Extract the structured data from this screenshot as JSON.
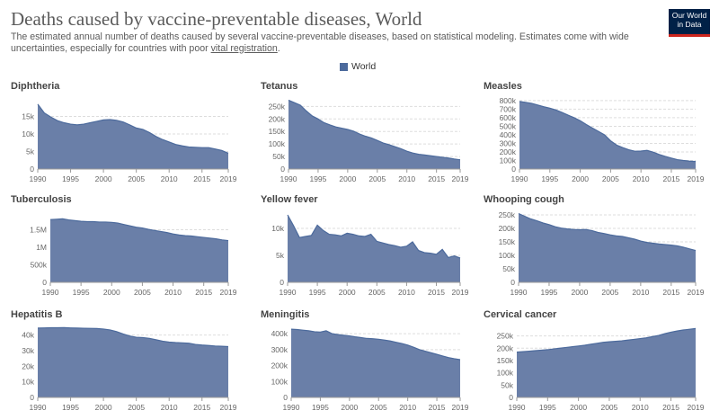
{
  "header": {
    "title": "Deaths caused by vaccine-preventable diseases, World",
    "subtitle": "The estimated annual number of deaths caused by several vaccine-preventable diseases, based on statistical modeling. Estimates come with wide uncertainties, especially for countries with poor",
    "subtitle_link": "vital registration",
    "subtitle_end": ".",
    "logo_line1": "Our World",
    "logo_line2": "in Data"
  },
  "legend": {
    "label": "World"
  },
  "colors": {
    "area": "#6a7fa8",
    "line": "#4c6a9c",
    "grid": "#dddddd",
    "text": "#5b5b5b"
  },
  "chart_data": [
    {
      "type": "area",
      "title": "Diphtheria",
      "x": [
        1990,
        1991,
        1992,
        1993,
        1994,
        1995,
        1996,
        1997,
        1998,
        1999,
        2000,
        2001,
        2002,
        2003,
        2004,
        2005,
        2006,
        2007,
        2008,
        2009,
        2010,
        2011,
        2012,
        2013,
        2014,
        2015,
        2016,
        2017,
        2018,
        2019
      ],
      "values": [
        18500,
        16000,
        14800,
        13800,
        13200,
        12800,
        12600,
        12800,
        13200,
        13600,
        14000,
        14100,
        13900,
        13400,
        12600,
        11700,
        11300,
        10400,
        9300,
        8400,
        7700,
        7000,
        6600,
        6300,
        6200,
        6100,
        6100,
        5700,
        5300,
        4500
      ],
      "xticks": [
        "1990",
        "1995",
        "2000",
        "2005",
        "2010",
        "2015",
        "2019"
      ],
      "yticks": [
        "0",
        "5k",
        "10k",
        "15k"
      ],
      "ylim": [
        0,
        20000
      ],
      "ytick_values": [
        0,
        5000,
        10000,
        15000
      ]
    },
    {
      "type": "area",
      "title": "Tetanus",
      "x": [
        1990,
        1991,
        1992,
        1993,
        1994,
        1995,
        1996,
        1997,
        1998,
        1999,
        2000,
        2001,
        2002,
        2003,
        2004,
        2005,
        2006,
        2007,
        2008,
        2009,
        2010,
        2011,
        2012,
        2013,
        2014,
        2015,
        2016,
        2017,
        2018,
        2019
      ],
      "values": [
        275000,
        265000,
        255000,
        232000,
        212000,
        200000,
        185000,
        176000,
        168000,
        163000,
        158000,
        151000,
        140000,
        131000,
        124000,
        114000,
        104000,
        97000,
        89000,
        81000,
        71000,
        64000,
        59000,
        56000,
        53000,
        50000,
        47000,
        44000,
        40000,
        37000
      ],
      "xticks": [
        "1990",
        "1995",
        "2000",
        "2005",
        "2010",
        "2015",
        "2019"
      ],
      "yticks": [
        "0",
        "50k",
        "100k",
        "150k",
        "200k",
        "250k"
      ],
      "ylim": [
        0,
        280000
      ],
      "ytick_values": [
        0,
        50000,
        100000,
        150000,
        200000,
        250000
      ]
    },
    {
      "type": "area",
      "title": "Measles",
      "x": [
        1990,
        1991,
        1992,
        1993,
        1994,
        1995,
        1996,
        1997,
        1998,
        1999,
        2000,
        2001,
        2002,
        2003,
        2004,
        2005,
        2006,
        2007,
        2008,
        2009,
        2010,
        2011,
        2012,
        2013,
        2014,
        2015,
        2016,
        2017,
        2018,
        2019
      ],
      "values": [
        790000,
        780000,
        768000,
        748000,
        728000,
        712000,
        690000,
        662000,
        630000,
        600000,
        565000,
        520000,
        480000,
        440000,
        400000,
        330000,
        280000,
        250000,
        225000,
        208000,
        210000,
        218000,
        198000,
        170000,
        148000,
        128000,
        110000,
        100000,
        92000,
        88000
      ],
      "xticks": [
        "1990",
        "1995",
        "2000",
        "2005",
        "2010",
        "2015",
        "2019"
      ],
      "yticks": [
        "0",
        "100k",
        "200k",
        "300k",
        "400k",
        "500k",
        "600k",
        "700k",
        "800k"
      ],
      "ylim": [
        0,
        820000
      ],
      "ytick_values": [
        0,
        100000,
        200000,
        300000,
        400000,
        500000,
        600000,
        700000,
        800000
      ]
    },
    {
      "type": "area",
      "title": "Tuberculosis",
      "x": [
        1990,
        1991,
        1992,
        1993,
        1994,
        1995,
        1996,
        1997,
        1998,
        1999,
        2000,
        2001,
        2002,
        2003,
        2004,
        2005,
        2006,
        2007,
        2008,
        2009,
        2010,
        2011,
        2012,
        2013,
        2014,
        2015,
        2016,
        2017,
        2018,
        2019
      ],
      "values": [
        1790000,
        1800000,
        1810000,
        1780000,
        1760000,
        1740000,
        1730000,
        1730000,
        1720000,
        1720000,
        1710000,
        1690000,
        1650000,
        1610000,
        1570000,
        1550000,
        1510000,
        1480000,
        1450000,
        1420000,
        1380000,
        1350000,
        1330000,
        1320000,
        1300000,
        1280000,
        1260000,
        1240000,
        1210000,
        1190000
      ],
      "xticks": [
        "1990",
        "1995",
        "2000",
        "2005",
        "2010",
        "2015",
        "2019"
      ],
      "yticks": [
        "0",
        "500k",
        "1M",
        "1.5M"
      ],
      "ylim": [
        0,
        2000000
      ],
      "ytick_values": [
        0,
        500000,
        1000000,
        1500000
      ]
    },
    {
      "type": "area",
      "title": "Yellow fever",
      "x": [
        1990,
        1991,
        1992,
        1993,
        1994,
        1995,
        1996,
        1997,
        1998,
        1999,
        2000,
        2001,
        2002,
        2003,
        2004,
        2005,
        2006,
        2007,
        2008,
        2009,
        2010,
        2011,
        2012,
        2013,
        2014,
        2015,
        2016,
        2017,
        2018,
        2019
      ],
      "values": [
        12500,
        10500,
        8300,
        8500,
        8700,
        10600,
        9600,
        8900,
        8800,
        8600,
        9100,
        8900,
        8600,
        8500,
        8900,
        7600,
        7300,
        7000,
        6800,
        6500,
        6700,
        7500,
        5900,
        5500,
        5400,
        5200,
        6100,
        4600,
        4900,
        4500
      ],
      "xticks": [
        "1990",
        "1995",
        "2000",
        "2005",
        "2010",
        "2015",
        "2019"
      ],
      "yticks": [
        "0",
        "5k",
        "10k"
      ],
      "ylim": [
        0,
        13000
      ],
      "ytick_values": [
        0,
        5000,
        10000
      ]
    },
    {
      "type": "area",
      "title": "Whooping cough",
      "x": [
        1990,
        1991,
        1992,
        1993,
        1994,
        1995,
        1996,
        1997,
        1998,
        1999,
        2000,
        2001,
        2002,
        2003,
        2004,
        2005,
        2006,
        2007,
        2008,
        2009,
        2010,
        2011,
        2012,
        2013,
        2014,
        2015,
        2016,
        2017,
        2018,
        2019
      ],
      "values": [
        255000,
        245000,
        235000,
        228000,
        220000,
        214000,
        206000,
        201000,
        198000,
        196000,
        195000,
        196000,
        192000,
        185000,
        181000,
        176000,
        172000,
        170000,
        165000,
        160000,
        153000,
        148000,
        145000,
        142000,
        140000,
        138000,
        135000,
        130000,
        124000,
        118000
      ],
      "xticks": [
        "1990",
        "1995",
        "2000",
        "2005",
        "2010",
        "2015",
        "2019"
      ],
      "yticks": [
        "0",
        "50k",
        "100k",
        "150k",
        "200k",
        "250k"
      ],
      "ylim": [
        0,
        260000
      ],
      "ytick_values": [
        0,
        50000,
        100000,
        150000,
        200000,
        250000
      ]
    },
    {
      "type": "area",
      "title": "Hepatitis B",
      "x": [
        1990,
        1991,
        1992,
        1993,
        1994,
        1995,
        1996,
        1997,
        1998,
        1999,
        2000,
        2001,
        2002,
        2003,
        2004,
        2005,
        2006,
        2007,
        2008,
        2009,
        2010,
        2011,
        2012,
        2013,
        2014,
        2015,
        2016,
        2017,
        2018,
        2019
      ],
      "values": [
        44500,
        44600,
        44700,
        44700,
        44800,
        44600,
        44500,
        44400,
        44300,
        44200,
        43900,
        43300,
        42200,
        40700,
        39400,
        38600,
        38400,
        37900,
        37000,
        36100,
        35500,
        35200,
        35000,
        34800,
        34000,
        33600,
        33300,
        33000,
        32800,
        32600
      ],
      "xticks": [
        "1990",
        "1995",
        "2000",
        "2005",
        "2010",
        "2015",
        "2019"
      ],
      "yticks": [
        "0",
        "10k",
        "20k",
        "30k",
        "40k"
      ],
      "ylim": [
        0,
        45000
      ],
      "ytick_values": [
        0,
        10000,
        20000,
        30000,
        40000
      ]
    },
    {
      "type": "area",
      "title": "Meningitis",
      "x": [
        1990,
        1991,
        1992,
        1993,
        1994,
        1995,
        1996,
        1997,
        1998,
        1999,
        2000,
        2001,
        2002,
        2003,
        2004,
        2005,
        2006,
        2007,
        2008,
        2009,
        2010,
        2011,
        2012,
        2013,
        2014,
        2015,
        2016,
        2017,
        2018,
        2019
      ],
      "values": [
        428000,
        426000,
        422000,
        418000,
        412000,
        410000,
        418000,
        400000,
        394000,
        390000,
        386000,
        380000,
        375000,
        370000,
        368000,
        365000,
        360000,
        354000,
        346000,
        338000,
        328000,
        315000,
        300000,
        290000,
        280000,
        270000,
        260000,
        250000,
        243000,
        237000
      ],
      "xticks": [
        "1990",
        "1995",
        "2000",
        "2005",
        "2010",
        "2015",
        "2019"
      ],
      "yticks": [
        "0",
        "100k",
        "200k",
        "300k",
        "400k"
      ],
      "ylim": [
        0,
        440000
      ],
      "ytick_values": [
        0,
        100000,
        200000,
        300000,
        400000
      ]
    },
    {
      "type": "area",
      "title": "Cervical cancer",
      "x": [
        1990,
        1991,
        1992,
        1993,
        1994,
        1995,
        1996,
        1997,
        1998,
        1999,
        2000,
        2001,
        2002,
        2003,
        2004,
        2005,
        2006,
        2007,
        2008,
        2009,
        2010,
        2011,
        2012,
        2013,
        2014,
        2015,
        2016,
        2017,
        2018,
        2019
      ],
      "values": [
        184000,
        186000,
        188000,
        190000,
        192000,
        194000,
        197000,
        200000,
        203000,
        206000,
        209000,
        212000,
        216000,
        220000,
        224000,
        226000,
        228000,
        230000,
        233000,
        236000,
        239000,
        242000,
        247000,
        252000,
        259000,
        265000,
        270000,
        274000,
        277000,
        280000
      ],
      "xticks": [
        "1990",
        "1995",
        "2000",
        "2005",
        "2010",
        "2015",
        "2019"
      ],
      "yticks": [
        "0",
        "50k",
        "100k",
        "150k",
        "200k",
        "250k"
      ],
      "ylim": [
        0,
        285000
      ],
      "ytick_values": [
        0,
        50000,
        100000,
        150000,
        200000,
        250000
      ]
    }
  ]
}
